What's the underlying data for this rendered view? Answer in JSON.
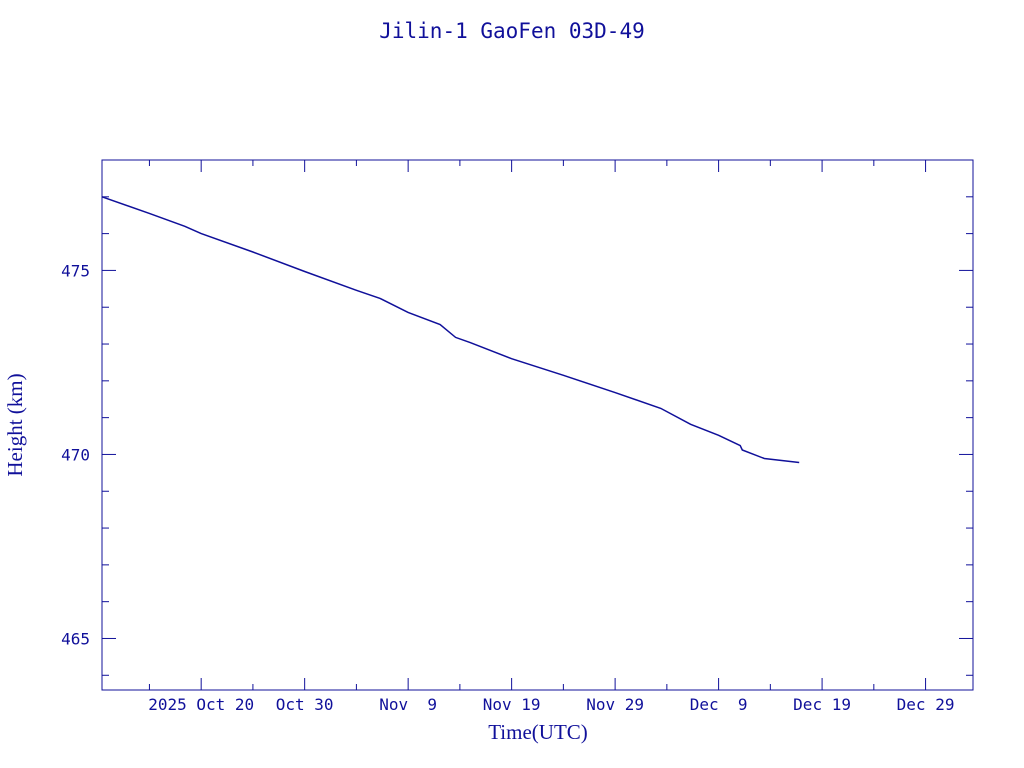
{
  "chart_data": {
    "type": "line",
    "title": "Jilin-1 GaoFen 03D-49",
    "xlabel": "Time(UTC)",
    "ylabel": "Height (km)",
    "color": "#10109a",
    "grid": false,
    "xlim": [
      "2025-10-10 10:00",
      "2026-01-02 14:00"
    ],
    "ylim": [
      463.6,
      478
    ],
    "x_ticks": [
      {
        "date": "2025-10-20",
        "label": "2025 Oct 20"
      },
      {
        "date": "2025-10-30",
        "label": "Oct 30"
      },
      {
        "date": "2025-11-09",
        "label": "Nov  9"
      },
      {
        "date": "2025-11-19",
        "label": "Nov 19"
      },
      {
        "date": "2025-11-29",
        "label": "Nov 29"
      },
      {
        "date": "2025-12-09",
        "label": "Dec  9"
      },
      {
        "date": "2025-12-19",
        "label": "Dec 19"
      },
      {
        "date": "2025-12-29",
        "label": "Dec 29"
      }
    ],
    "y_ticks": [
      465,
      470,
      475
    ],
    "series": [
      {
        "x": [
          "2025-10-10 10:00",
          "2025-10-15 00:00",
          "2025-10-18 10:00",
          "2025-10-20 00:00",
          "2025-10-25 00:00",
          "2025-10-30 00:00",
          "2025-11-04 00:00",
          "2025-11-06 07:00",
          "2025-11-09 00:00",
          "2025-11-12 02:00",
          "2025-11-13 14:00",
          "2025-11-15 00:00",
          "2025-11-19 00:00",
          "2025-11-24 00:00",
          "2025-11-29 00:00",
          "2025-12-03 10:00",
          "2025-12-06 07:00",
          "2025-12-09 00:00",
          "2025-12-11 02:00",
          "2025-12-11 07:00",
          "2025-12-13 10:00",
          "2025-12-16 19:00"
        ],
        "y": [
          477.0,
          476.55,
          476.2,
          476.0,
          475.5,
          474.97,
          474.46,
          474.24,
          473.86,
          473.53,
          473.18,
          473.04,
          472.6,
          472.15,
          471.68,
          471.25,
          470.82,
          470.52,
          470.24,
          470.12,
          469.89,
          469.78
        ]
      }
    ]
  }
}
